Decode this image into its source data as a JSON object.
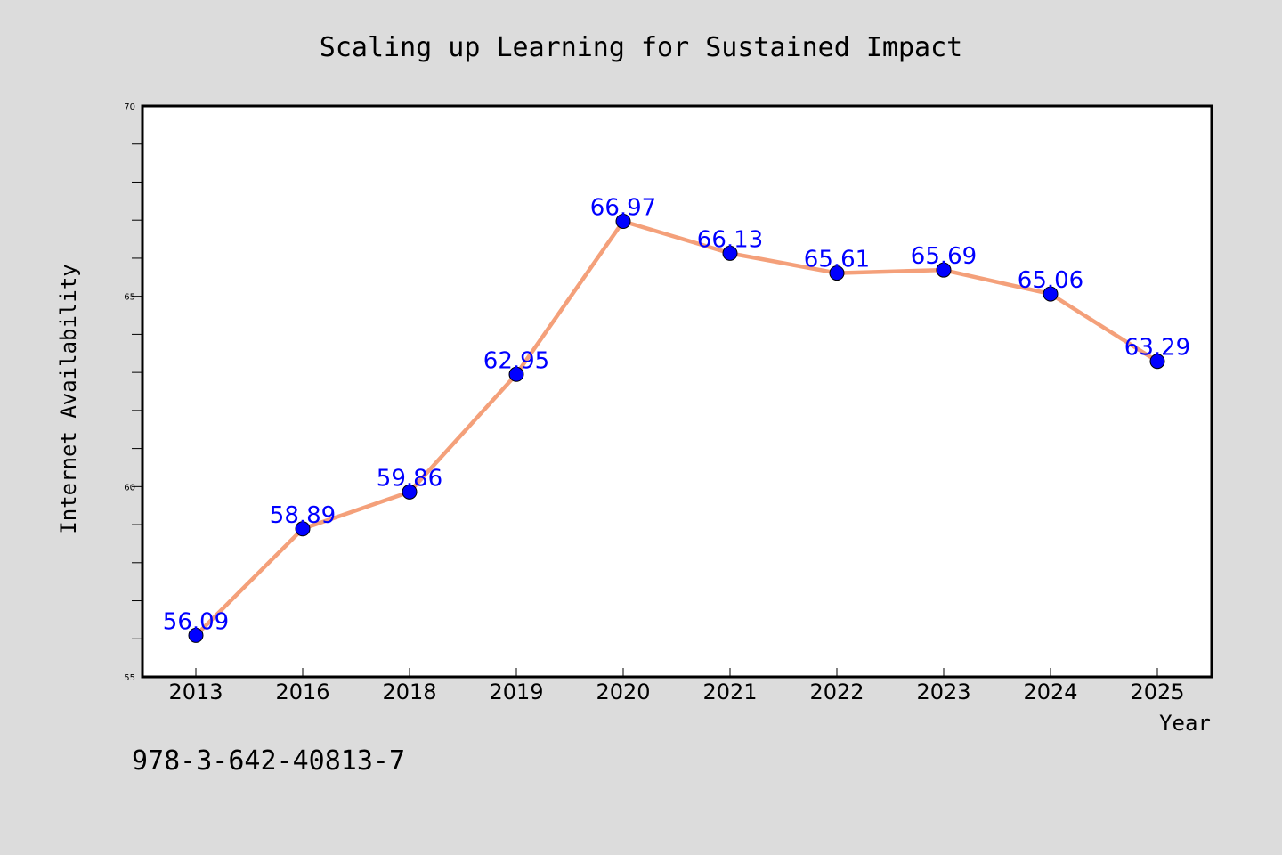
{
  "chart_data": {
    "type": "line",
    "title": "Scaling up Learning for Sustained Impact",
    "xlabel": "Year",
    "ylabel": "Internet Availability",
    "categories": [
      "2013",
      "2016",
      "2018",
      "2019",
      "2020",
      "2021",
      "2022",
      "2023",
      "2024",
      "2025"
    ],
    "series": [
      {
        "values": [
          56.09,
          58.89,
          59.86,
          62.95,
          66.97,
          66.13,
          65.61,
          65.69,
          65.06,
          63.29
        ],
        "labels": [
          "56.09",
          "58.89",
          "59.86",
          "62.95",
          "66.97",
          "66.13",
          "65.61",
          "65.69",
          "65.06",
          "63.29"
        ]
      }
    ],
    "ylim": [
      55,
      70
    ],
    "yticks": [
      "55",
      "60",
      "65",
      "70"
    ],
    "grid": false,
    "legend": "none",
    "colors": {
      "line": "#f4a07a",
      "marker": "#0000ff",
      "data_label": "#0000ff",
      "background": "#dcdcdc",
      "plot_area": "#ffffff"
    }
  },
  "footer": {
    "isbn": "978-3-642-40813-7"
  }
}
